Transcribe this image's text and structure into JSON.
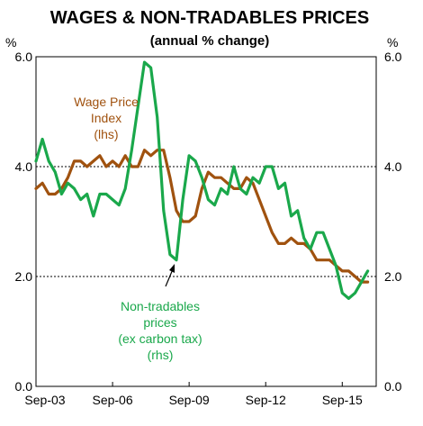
{
  "chart_data": {
    "type": "line",
    "title": "WAGES & NON-TRADABLES PRICES",
    "subtitle": "(annual % change)",
    "y_unit_left": "%",
    "y_unit_right": "%",
    "ylim": [
      0,
      6
    ],
    "yticks": [
      "0.0",
      "2.0",
      "4.0",
      "6.0"
    ],
    "xlim": [
      2003.67,
      2017.0
    ],
    "xticks": [
      {
        "label": "Sep-03",
        "value": 2003.67
      },
      {
        "label": "Sep-06",
        "value": 2006.67
      },
      {
        "label": "Sep-09",
        "value": 2009.67
      },
      {
        "label": "Sep-12",
        "value": 2012.67
      },
      {
        "label": "Sep-15",
        "value": 2015.67
      }
    ],
    "gridlines_y": [
      2,
      4
    ],
    "colors": {
      "wpi": "#a0520f",
      "nontradables": "#1aa84b",
      "grid": "#000000"
    },
    "series": [
      {
        "key": "wpi",
        "annotation": [
          "Wage Price",
          "Index",
          "(lhs)"
        ],
        "x": [
          2003.67,
          2003.92,
          2004.17,
          2004.42,
          2004.67,
          2004.92,
          2005.17,
          2005.42,
          2005.67,
          2005.92,
          2006.17,
          2006.42,
          2006.67,
          2006.92,
          2007.17,
          2007.42,
          2007.67,
          2007.92,
          2008.17,
          2008.42,
          2008.67,
          2008.92,
          2009.17,
          2009.42,
          2009.67,
          2009.92,
          2010.17,
          2010.42,
          2010.67,
          2010.92,
          2011.17,
          2011.42,
          2011.67,
          2011.92,
          2012.17,
          2012.42,
          2012.67,
          2012.92,
          2013.17,
          2013.42,
          2013.67,
          2013.92,
          2014.17,
          2014.42,
          2014.67,
          2014.92,
          2015.17,
          2015.42,
          2015.67,
          2015.92,
          2016.17,
          2016.42,
          2016.67
        ],
        "y": [
          3.6,
          3.7,
          3.5,
          3.5,
          3.6,
          3.8,
          4.1,
          4.1,
          4.0,
          4.1,
          4.2,
          4.0,
          4.1,
          4.0,
          4.2,
          4.0,
          4.0,
          4.3,
          4.2,
          4.3,
          4.3,
          3.8,
          3.2,
          3.0,
          3.0,
          3.1,
          3.6,
          3.9,
          3.8,
          3.8,
          3.7,
          3.6,
          3.6,
          3.8,
          3.7,
          3.4,
          3.1,
          2.8,
          2.6,
          2.6,
          2.7,
          2.6,
          2.6,
          2.5,
          2.3,
          2.3,
          2.3,
          2.2,
          2.1,
          2.1,
          2.0,
          1.9,
          1.9
        ]
      },
      {
        "key": "nontradables",
        "annotation": [
          "Non-tradables",
          "prices",
          "(ex carbon tax)",
          "(rhs)"
        ],
        "x": [
          2003.67,
          2003.92,
          2004.17,
          2004.42,
          2004.67,
          2004.92,
          2005.17,
          2005.42,
          2005.67,
          2005.92,
          2006.17,
          2006.42,
          2006.67,
          2006.92,
          2007.17,
          2007.42,
          2007.67,
          2007.92,
          2008.17,
          2008.42,
          2008.67,
          2008.92,
          2009.17,
          2009.42,
          2009.67,
          2009.92,
          2010.17,
          2010.42,
          2010.67,
          2010.92,
          2011.17,
          2011.42,
          2011.67,
          2011.92,
          2012.17,
          2012.42,
          2012.67,
          2012.92,
          2013.17,
          2013.42,
          2013.67,
          2013.92,
          2014.17,
          2014.42,
          2014.67,
          2014.92,
          2015.17,
          2015.42,
          2015.67,
          2015.92,
          2016.17,
          2016.42,
          2016.67
        ],
        "y": [
          4.1,
          4.5,
          4.1,
          3.9,
          3.5,
          3.7,
          3.6,
          3.4,
          3.5,
          3.1,
          3.5,
          3.5,
          3.4,
          3.3,
          3.6,
          4.3,
          5.1,
          5.9,
          5.8,
          4.9,
          3.2,
          2.4,
          2.3,
          3.4,
          4.2,
          4.1,
          3.8,
          3.4,
          3.3,
          3.6,
          3.5,
          4.0,
          3.6,
          3.5,
          3.8,
          3.7,
          4.0,
          4.0,
          3.6,
          3.7,
          3.1,
          3.2,
          2.7,
          2.5,
          2.8,
          2.8,
          2.5,
          2.2,
          1.7,
          1.6,
          1.7,
          1.9,
          2.1
        ]
      }
    ]
  }
}
